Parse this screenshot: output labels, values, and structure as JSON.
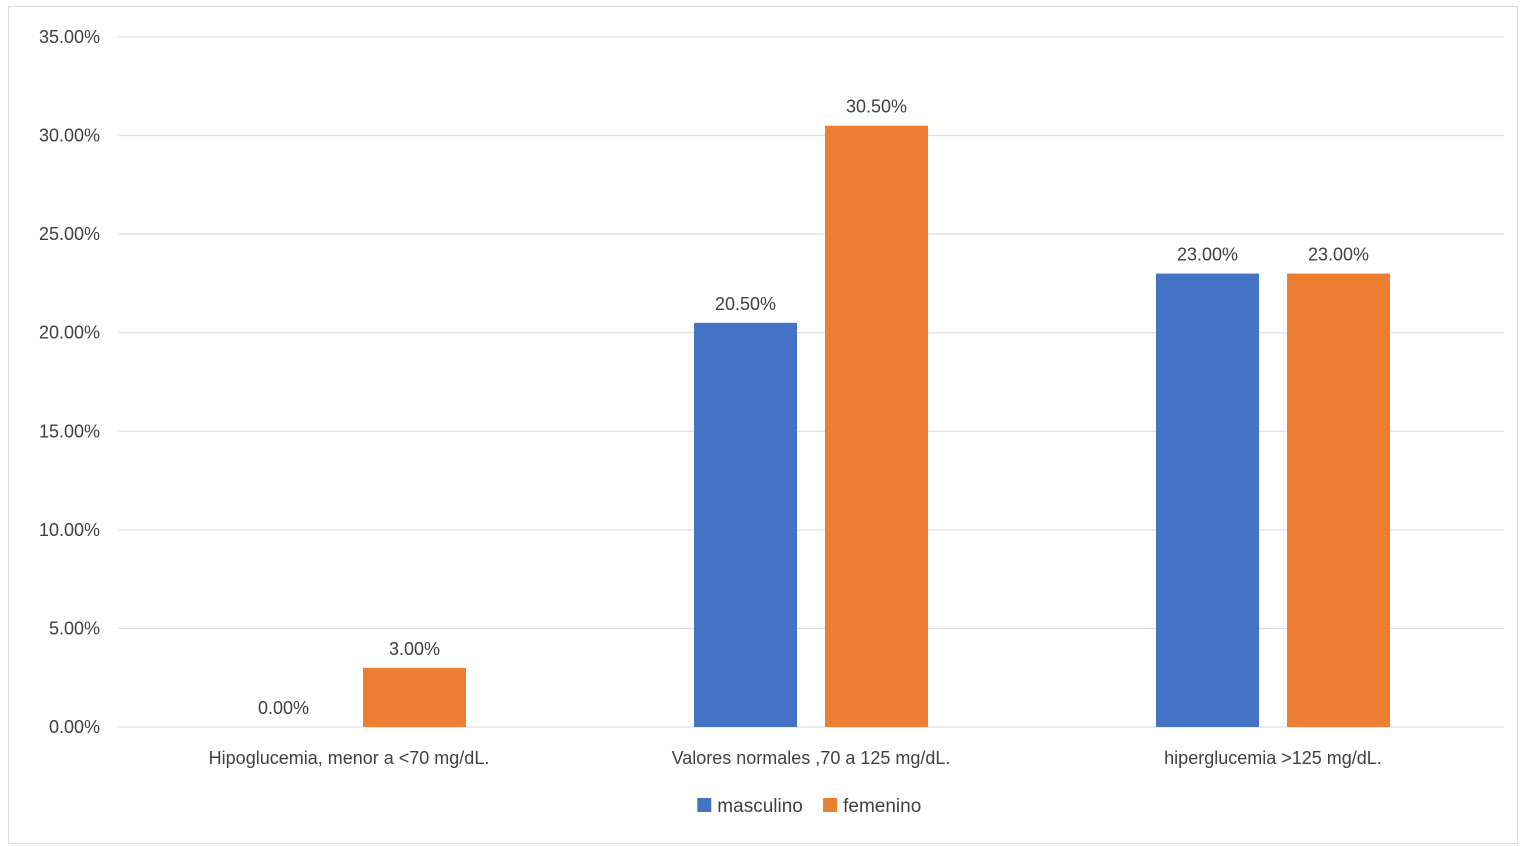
{
  "chart_data": {
    "type": "bar",
    "title": "",
    "xlabel": "",
    "ylabel": "",
    "categories": [
      "Hipoglucemia, menor a <70 mg/dL.",
      "Valores normales ,70 a 125 mg/dL.",
      "hiperglucemia >125 mg/dL."
    ],
    "series": [
      {
        "name": "masculino",
        "color": "#4472C4",
        "values": [
          0.0,
          20.5,
          23.0
        ],
        "labels": [
          "0.00%",
          "20.50%",
          "23.00%"
        ]
      },
      {
        "name": "femenino",
        "color": "#ED7D31",
        "values": [
          3.0,
          30.5,
          23.0
        ],
        "labels": [
          "3.00%",
          "30.50%",
          "23.00%"
        ]
      }
    ],
    "ylim": [
      0,
      35
    ],
    "yticks": [
      0,
      5,
      10,
      15,
      20,
      25,
      30,
      35
    ],
    "ytick_labels": [
      "0.00%",
      "5.00%",
      "10.00%",
      "15.00%",
      "20.00%",
      "25.00%",
      "30.00%",
      "35.00%"
    ],
    "grid": true,
    "legend_position": "bottom-center"
  }
}
